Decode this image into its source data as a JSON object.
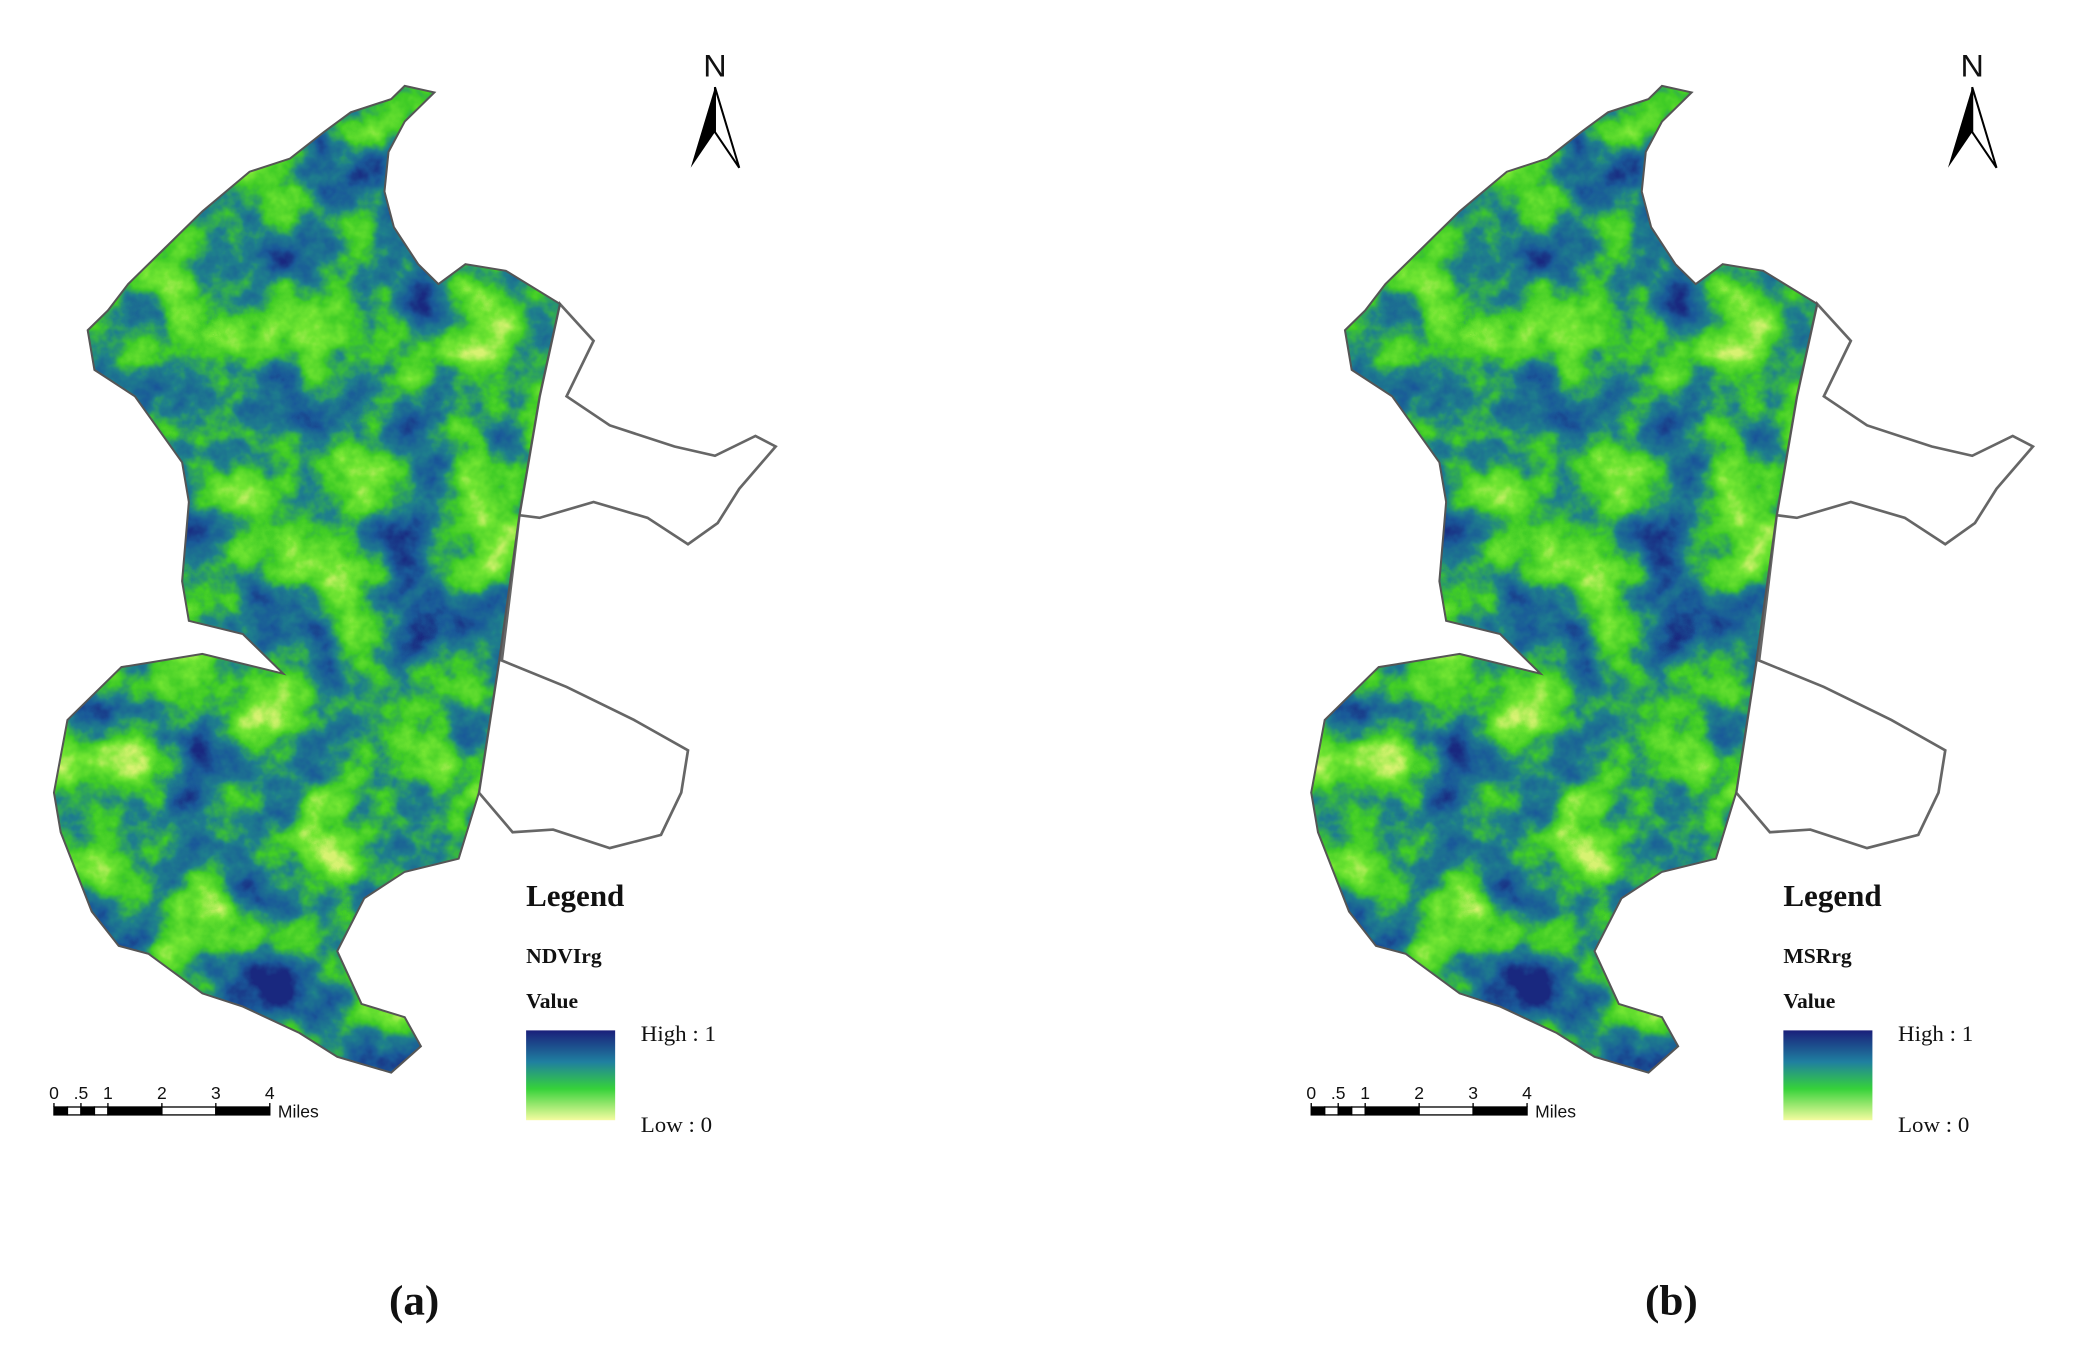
{
  "panels": [
    {
      "caption": "(a)",
      "north": "N",
      "legend": {
        "title": "Legend",
        "layer": "NDVIrg",
        "field": "Value",
        "high": "High : 1",
        "low": "Low : 0"
      },
      "scale_bar": {
        "ticks": [
          0,
          {
            "value": 0.5,
            "label": ".5"
          },
          1,
          2,
          3,
          4
        ],
        "unit": "Miles"
      }
    },
    {
      "caption": "(b)",
      "north": "N",
      "legend": {
        "title": "Legend",
        "layer": "MSRrg",
        "field": "Value",
        "high": "High : 1",
        "low": "Low : 0"
      },
      "scale_bar": {
        "ticks": [
          0,
          {
            "value": 0.5,
            "label": ".5"
          },
          1,
          2,
          3,
          4
        ],
        "unit": "Miles"
      }
    }
  ]
}
